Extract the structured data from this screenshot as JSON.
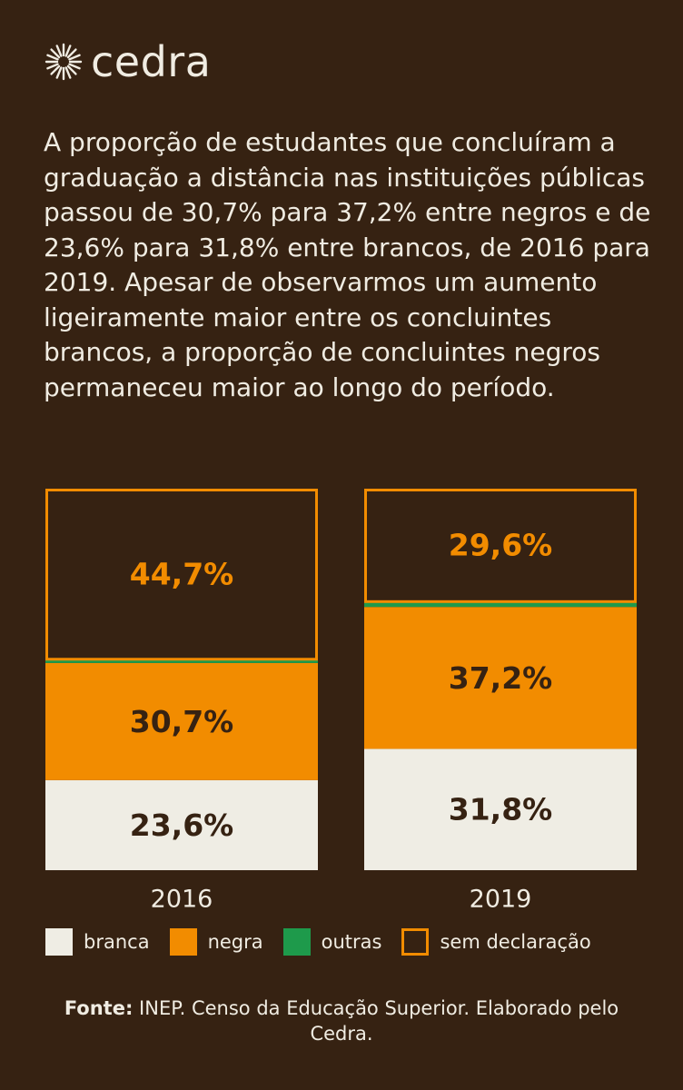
{
  "brand": {
    "name": "cedra",
    "logo_icon": "sun-burst-icon"
  },
  "intro": "A proporção de estudantes que concluíram a graduação a distância nas instituições públicas passou de 30,7% para 37,2% entre negros e de 23,6% para 31,8% entre brancos, de 2016 para 2019. Apesar de observarmos um aumento ligeiramente maior entre os concluintes brancos, a proporção de concluintes negros permaneceu maior ao longo do período.",
  "chart_data": {
    "type": "bar",
    "stacked": true,
    "categories": [
      "2016",
      "2019"
    ],
    "ylim": [
      0,
      100
    ],
    "grid": false,
    "legend_placement": "bottom",
    "series": [
      {
        "name": "branca",
        "values": [
          23.6,
          31.8
        ],
        "labels": [
          "23,6%",
          "31,8%"
        ],
        "color": "#efede4",
        "style": "fill"
      },
      {
        "name": "negra",
        "values": [
          30.7,
          37.2
        ],
        "labels": [
          "30,7%",
          "37,2%"
        ],
        "color": "#f28c00",
        "style": "fill"
      },
      {
        "name": "outras",
        "values": [
          1.0,
          1.4
        ],
        "labels": [
          "",
          ""
        ],
        "color": "#1e9a4b",
        "style": "fill"
      },
      {
        "name": "sem declaração",
        "values": [
          44.7,
          29.6
        ],
        "labels": [
          "44,7%",
          "29,6%"
        ],
        "color": "#f28c00",
        "style": "outline"
      }
    ]
  },
  "source": {
    "label": "Fonte:",
    "text": " INEP. Censo da Educação Superior. Elaborado pelo Cedra."
  }
}
